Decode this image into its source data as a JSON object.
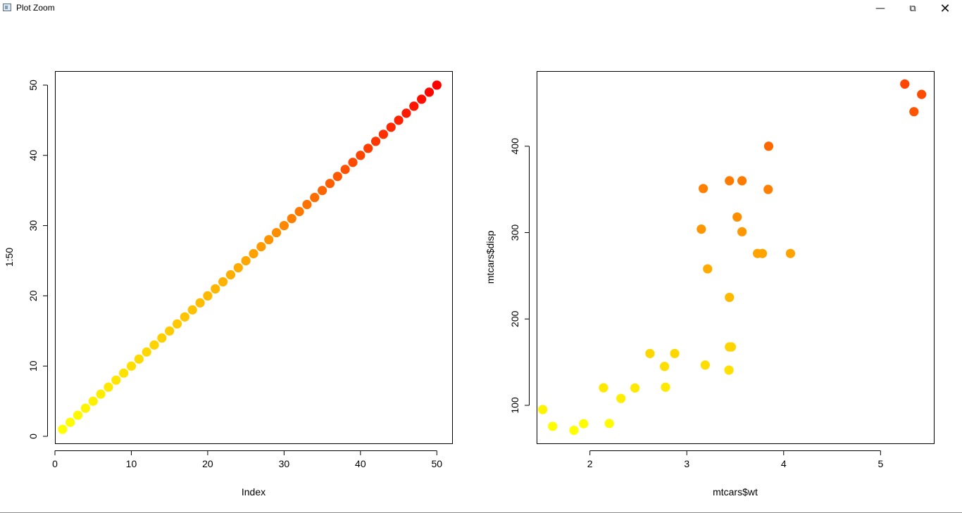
{
  "window": {
    "title": "Plot Zoom",
    "minimize_icon": "minimize-icon",
    "maximize_icon": "restore-icon",
    "close_icon": "close-icon"
  },
  "chart_data": [
    {
      "type": "scatter",
      "xlabel": "Index",
      "ylabel": "1:50",
      "xlim": [
        0,
        52
      ],
      "ylim": [
        -1,
        52
      ],
      "xticks": [
        0,
        10,
        20,
        30,
        40,
        50
      ],
      "yticks": [
        0,
        10,
        20,
        30,
        40,
        50
      ],
      "color_gradient": [
        "#ffff00",
        "#ffa500",
        "#ff0000"
      ],
      "series": [
        {
          "x": [
            1,
            2,
            3,
            4,
            5,
            6,
            7,
            8,
            9,
            10,
            11,
            12,
            13,
            14,
            15,
            16,
            17,
            18,
            19,
            20,
            21,
            22,
            23,
            24,
            25,
            26,
            27,
            28,
            29,
            30,
            31,
            32,
            33,
            34,
            35,
            36,
            37,
            38,
            39,
            40,
            41,
            42,
            43,
            44,
            45,
            46,
            47,
            48,
            49,
            50
          ],
          "y": [
            1,
            2,
            3,
            4,
            5,
            6,
            7,
            8,
            9,
            10,
            11,
            12,
            13,
            14,
            15,
            16,
            17,
            18,
            19,
            20,
            21,
            22,
            23,
            24,
            25,
            26,
            27,
            28,
            29,
            30,
            31,
            32,
            33,
            34,
            35,
            36,
            37,
            38,
            39,
            40,
            41,
            42,
            43,
            44,
            45,
            46,
            47,
            48,
            49,
            50
          ]
        }
      ]
    },
    {
      "type": "scatter",
      "xlabel": "mtcars$wt",
      "ylabel": "mtcars$disp",
      "xlim": [
        1.45,
        5.55
      ],
      "ylim": [
        56,
        487
      ],
      "xticks": [
        2,
        3,
        4,
        5
      ],
      "yticks": [
        100,
        200,
        300,
        400
      ],
      "color_gradient": [
        "#ffff00",
        "#ffa500",
        "#ff4500"
      ],
      "series": [
        {
          "x": [
            1.513,
            1.615,
            1.835,
            1.935,
            2.14,
            2.2,
            2.32,
            2.465,
            2.62,
            2.77,
            2.78,
            2.875,
            3.15,
            3.17,
            3.19,
            3.215,
            3.435,
            3.44,
            3.44,
            3.44,
            3.46,
            3.52,
            3.57,
            3.57,
            3.73,
            3.78,
            3.84,
            3.845,
            4.07,
            5.25,
            5.345,
            5.424
          ],
          "y": [
            95.1,
            75.7,
            71.1,
            78.7,
            120.3,
            79,
            108,
            120.1,
            160,
            145,
            121,
            160,
            304,
            351,
            146.7,
            258,
            140.8,
            167.6,
            225,
            360,
            167.6,
            318,
            360,
            301,
            275.8,
            275.8,
            350,
            400,
            275.8,
            472,
            440,
            460
          ]
        }
      ]
    }
  ]
}
